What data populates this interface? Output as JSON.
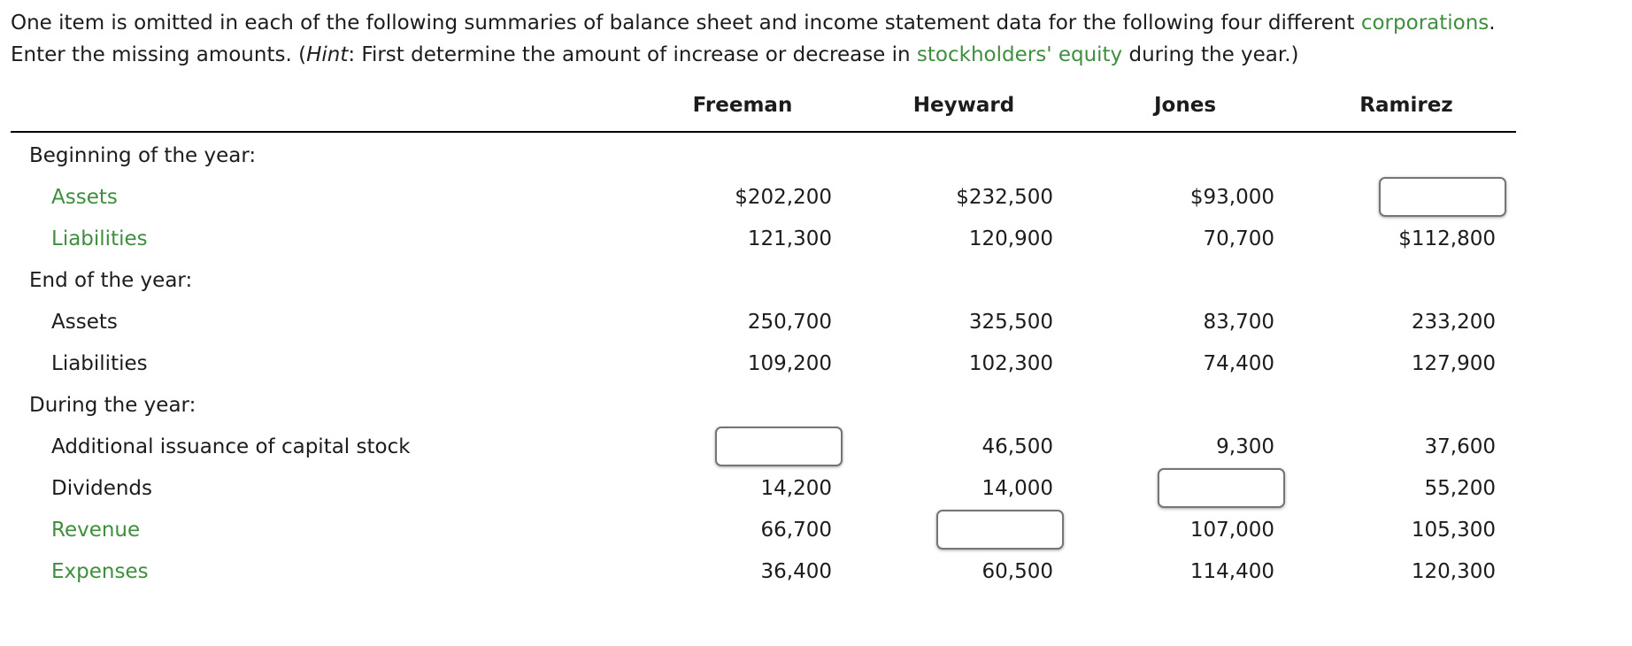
{
  "colors": {
    "link_green": "#3e8e3e",
    "body_text": "#1c1c1c",
    "header_rule": "#000000",
    "input_border": "#757575"
  },
  "intro": {
    "line1": {
      "pre": "One item is omitted in each of the following summaries of balance sheet and income statement data for the following four different ",
      "link": "corporations",
      "post": "."
    },
    "line2": {
      "pre": "Enter the missing amounts. (",
      "hint": "Hint",
      "mid": ": First determine the amount of increase or decrease in ",
      "link": "stockholders' equity",
      "post": " during the year.)"
    }
  },
  "table": {
    "columns": [
      "Freeman",
      "Heyward",
      "Jones",
      "Ramirez"
    ],
    "rows": [
      {
        "type": "section",
        "label": "Beginning of the year:",
        "link": false,
        "cells": [
          null,
          null,
          null,
          null
        ]
      },
      {
        "type": "item",
        "label": "Assets",
        "link": true,
        "cells": [
          "$202,200",
          "$232,500",
          "$93,000",
          null
        ]
      },
      {
        "type": "item",
        "label": "Liabilities",
        "link": true,
        "cells": [
          "121,300",
          "120,900",
          "70,700",
          "$112,800"
        ]
      },
      {
        "type": "section",
        "label": "End of the year:",
        "link": false,
        "cells": [
          null,
          null,
          null,
          null
        ]
      },
      {
        "type": "item",
        "label": "Assets",
        "link": false,
        "cells": [
          "250,700",
          "325,500",
          "83,700",
          "233,200"
        ]
      },
      {
        "type": "item",
        "label": "Liabilities",
        "link": false,
        "cells": [
          "109,200",
          "102,300",
          "74,400",
          "127,900"
        ]
      },
      {
        "type": "section",
        "label": "During the year:",
        "link": false,
        "cells": [
          null,
          null,
          null,
          null
        ]
      },
      {
        "type": "item",
        "label": "Additional issuance of capital stock",
        "link": false,
        "cells": [
          null,
          "46,500",
          "9,300",
          "37,600"
        ]
      },
      {
        "type": "item",
        "label": "Dividends",
        "link": false,
        "cells": [
          "14,200",
          "14,000",
          null,
          "55,200"
        ]
      },
      {
        "type": "item",
        "label": "Revenue",
        "link": true,
        "cells": [
          "66,700",
          null,
          "107,000",
          "105,300"
        ]
      },
      {
        "type": "item",
        "label": "Expenses",
        "link": true,
        "cells": [
          "36,400",
          "60,500",
          "114,400",
          "120,300"
        ]
      }
    ],
    "inputs": {
      "ramirez_beginning_assets": "",
      "freeman_stock_issuance": "",
      "jones_dividends": "",
      "heyward_revenue": ""
    }
  }
}
